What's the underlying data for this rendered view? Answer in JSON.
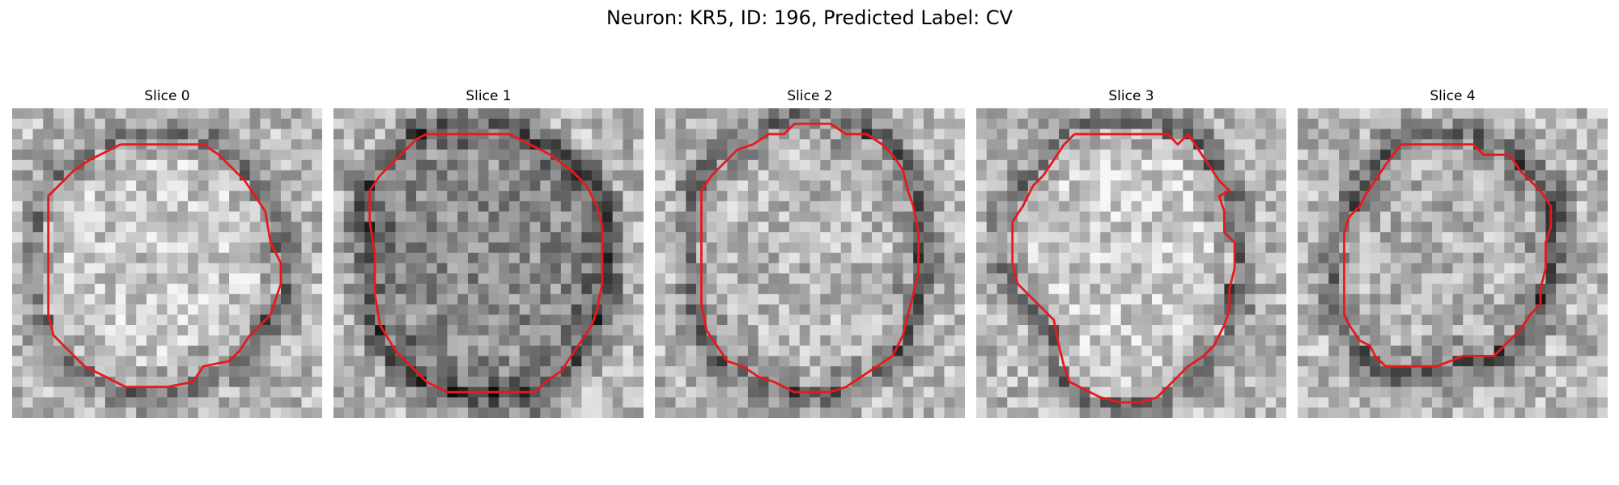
{
  "figure": {
    "title": "Neuron: KR5, ID: 196, Predicted Label: CV"
  },
  "panels": [
    {
      "title": "Slice 0",
      "contour": [
        [
          10.5,
          3.5
        ],
        [
          14.0,
          3.5
        ],
        [
          16.0,
          3.5
        ],
        [
          18.5,
          3.5
        ],
        [
          20.0,
          4.5
        ],
        [
          21.0,
          5.5
        ],
        [
          22.5,
          7.0
        ],
        [
          23.5,
          8.5
        ],
        [
          24.5,
          10.0
        ],
        [
          25.0,
          13.0
        ],
        [
          26.0,
          15.0
        ],
        [
          26.0,
          17.0
        ],
        [
          25.5,
          18.5
        ],
        [
          25.0,
          20.0
        ],
        [
          24.0,
          21.0
        ],
        [
          23.0,
          22.0
        ],
        [
          22.0,
          23.5
        ],
        [
          21.0,
          24.5
        ],
        [
          18.5,
          25.0
        ],
        [
          17.5,
          26.5
        ],
        [
          15.0,
          27.0
        ],
        [
          11.0,
          27.0
        ],
        [
          9.0,
          26.0
        ],
        [
          7.0,
          25.0
        ],
        [
          6.0,
          24.0
        ],
        [
          5.0,
          23.0
        ],
        [
          4.0,
          22.0
        ],
        [
          3.5,
          20.0
        ],
        [
          3.5,
          16.0
        ],
        [
          3.5,
          12.5
        ],
        [
          3.5,
          8.5
        ],
        [
          4.5,
          7.5
        ],
        [
          6.0,
          6.0
        ],
        [
          7.5,
          5.0
        ],
        [
          8.5,
          4.5
        ],
        [
          10.5,
          3.5
        ]
      ],
      "inner_brightness": 0.78,
      "ring_darkness": 0.35,
      "seed": 11
    },
    {
      "title": "Slice 1",
      "contour": [
        [
          9.0,
          2.5
        ],
        [
          13.0,
          2.5
        ],
        [
          17.0,
          2.5
        ],
        [
          19.0,
          3.5
        ],
        [
          21.0,
          4.5
        ],
        [
          23.0,
          6.0
        ],
        [
          24.5,
          7.5
        ],
        [
          25.5,
          9.5
        ],
        [
          26.0,
          11.5
        ],
        [
          26.0,
          14.5
        ],
        [
          26.0,
          17.0
        ],
        [
          25.5,
          19.5
        ],
        [
          25.0,
          21.0
        ],
        [
          24.0,
          22.5
        ],
        [
          23.0,
          24.0
        ],
        [
          22.0,
          25.5
        ],
        [
          20.5,
          26.5
        ],
        [
          19.5,
          27.5
        ],
        [
          14.0,
          27.5
        ],
        [
          11.0,
          27.5
        ],
        [
          9.0,
          26.5
        ],
        [
          7.5,
          25.0
        ],
        [
          6.0,
          23.5
        ],
        [
          4.5,
          21.0
        ],
        [
          4.0,
          18.0
        ],
        [
          4.0,
          14.0
        ],
        [
          3.5,
          11.0
        ],
        [
          3.5,
          8.0
        ],
        [
          4.5,
          6.5
        ],
        [
          5.5,
          5.5
        ],
        [
          7.0,
          4.0
        ],
        [
          8.0,
          3.0
        ],
        [
          9.0,
          2.5
        ]
      ],
      "inner_brightness": 0.55,
      "ring_darkness": 0.5,
      "seed": 23
    },
    {
      "title": "Slice 2",
      "contour": [
        [
          13.5,
          1.5
        ],
        [
          17.0,
          1.5
        ],
        [
          18.5,
          2.5
        ],
        [
          20.5,
          2.5
        ],
        [
          22.0,
          3.5
        ],
        [
          23.0,
          4.5
        ],
        [
          24.0,
          6.0
        ],
        [
          24.5,
          8.0
        ],
        [
          25.0,
          9.5
        ],
        [
          25.5,
          12.0
        ],
        [
          25.5,
          14.0
        ],
        [
          25.5,
          16.0
        ],
        [
          25.0,
          18.0
        ],
        [
          24.5,
          20.0
        ],
        [
          24.0,
          22.0
        ],
        [
          23.0,
          24.0
        ],
        [
          21.5,
          25.0
        ],
        [
          20.0,
          26.0
        ],
        [
          18.5,
          27.0
        ],
        [
          17.0,
          27.5
        ],
        [
          13.5,
          27.5
        ],
        [
          11.5,
          26.5
        ],
        [
          10.0,
          26.0
        ],
        [
          8.5,
          25.0
        ],
        [
          7.0,
          24.5
        ],
        [
          6.0,
          23.0
        ],
        [
          5.0,
          21.5
        ],
        [
          4.5,
          19.0
        ],
        [
          4.5,
          16.0
        ],
        [
          4.5,
          12.0
        ],
        [
          4.5,
          8.0
        ],
        [
          5.5,
          6.5
        ],
        [
          6.5,
          5.5
        ],
        [
          8.0,
          4.0
        ],
        [
          9.5,
          3.5
        ],
        [
          11.0,
          2.5
        ],
        [
          12.5,
          2.5
        ],
        [
          13.5,
          1.5
        ]
      ],
      "inner_brightness": 0.72,
      "ring_darkness": 0.4,
      "seed": 37
    },
    {
      "title": "Slice 3",
      "contour": [
        [
          9.5,
          2.5
        ],
        [
          14.0,
          2.5
        ],
        [
          18.5,
          2.5
        ],
        [
          19.5,
          3.5
        ],
        [
          20.5,
          2.5
        ],
        [
          21.5,
          4.0
        ],
        [
          22.5,
          5.5
        ],
        [
          23.5,
          7.0
        ],
        [
          24.5,
          8.0
        ],
        [
          23.5,
          8.5
        ],
        [
          24.0,
          10.0
        ],
        [
          24.0,
          12.0
        ],
        [
          25.0,
          13.0
        ],
        [
          25.0,
          15.5
        ],
        [
          24.5,
          17.5
        ],
        [
          24.5,
          19.5
        ],
        [
          24.0,
          21.0
        ],
        [
          23.0,
          23.0
        ],
        [
          22.0,
          24.0
        ],
        [
          20.5,
          25.0
        ],
        [
          19.5,
          26.0
        ],
        [
          18.5,
          27.0
        ],
        [
          17.5,
          28.0
        ],
        [
          16.0,
          28.5
        ],
        [
          14.0,
          28.5
        ],
        [
          12.0,
          28.0
        ],
        [
          10.0,
          27.0
        ],
        [
          9.0,
          26.5
        ],
        [
          8.5,
          25.0
        ],
        [
          8.0,
          23.0
        ],
        [
          7.5,
          20.5
        ],
        [
          6.0,
          19.0
        ],
        [
          5.0,
          18.0
        ],
        [
          4.0,
          17.0
        ],
        [
          3.5,
          15.0
        ],
        [
          3.5,
          11.0
        ],
        [
          4.5,
          9.5
        ],
        [
          5.5,
          7.5
        ],
        [
          6.5,
          6.5
        ],
        [
          7.5,
          5.0
        ],
        [
          8.5,
          3.5
        ],
        [
          9.5,
          2.5
        ]
      ],
      "inner_brightness": 0.8,
      "ring_darkness": 0.35,
      "seed": 53
    },
    {
      "title": "Slice 4",
      "contour": [
        [
          10.0,
          3.5
        ],
        [
          14.0,
          3.5
        ],
        [
          17.0,
          3.5
        ],
        [
          18.0,
          4.5
        ],
        [
          20.5,
          4.5
        ],
        [
          21.5,
          6.0
        ],
        [
          22.5,
          7.0
        ],
        [
          23.5,
          8.0
        ],
        [
          24.5,
          9.5
        ],
        [
          24.5,
          11.5
        ],
        [
          24.0,
          13.0
        ],
        [
          24.0,
          15.5
        ],
        [
          23.5,
          17.5
        ],
        [
          23.5,
          19.0
        ],
        [
          22.5,
          20.0
        ],
        [
          21.5,
          21.5
        ],
        [
          20.5,
          22.5
        ],
        [
          19.0,
          24.0
        ],
        [
          16.0,
          24.0
        ],
        [
          13.5,
          25.0
        ],
        [
          11.0,
          25.0
        ],
        [
          8.5,
          25.0
        ],
        [
          7.5,
          24.0
        ],
        [
          7.0,
          23.0
        ],
        [
          6.0,
          22.5
        ],
        [
          5.0,
          21.0
        ],
        [
          4.5,
          20.0
        ],
        [
          4.5,
          16.0
        ],
        [
          4.5,
          12.0
        ],
        [
          5.0,
          10.5
        ],
        [
          6.0,
          9.5
        ],
        [
          6.5,
          8.5
        ],
        [
          7.5,
          7.0
        ],
        [
          8.5,
          5.5
        ],
        [
          10.0,
          3.5
        ]
      ],
      "inner_brightness": 0.7,
      "ring_darkness": 0.45,
      "seed": 71
    }
  ],
  "contour_color": "#e8191c",
  "grid_size": 30
}
